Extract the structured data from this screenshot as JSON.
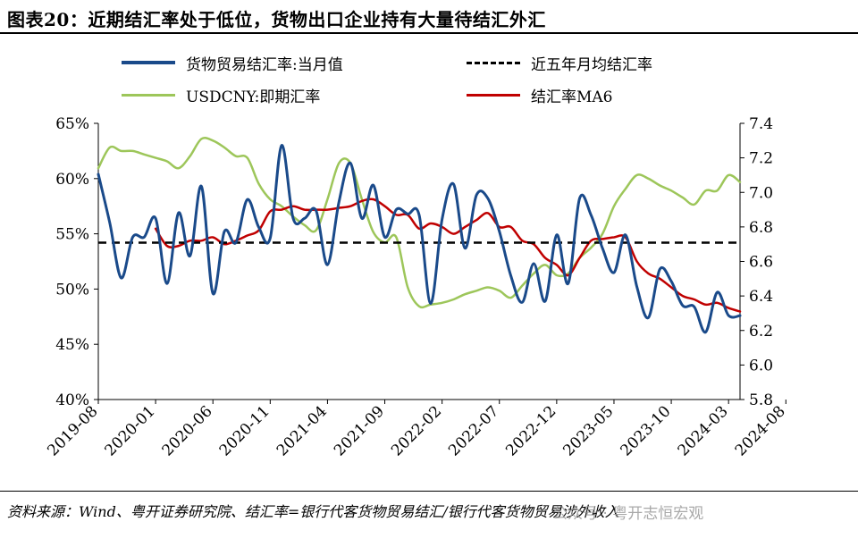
{
  "title": "图表20：近期结汇率处于低位，货物出口企业持有大量待结汇外汇",
  "source": "资料来源：Wind、粤开证券研究院、结汇率=银行代客货物贸易结汇/银行代客货物贸易涉外收入",
  "watermark": "公众号 · 粤开志恒宏观",
  "colors": {
    "blue": "#1a4a8a",
    "green": "#9dc65a",
    "red": "#c00000",
    "black": "#000000"
  },
  "legend": {
    "blue": "货物贸易结汇率:当月值",
    "black": "近五年月均结汇率",
    "green": "USDCNY:即期汇率",
    "red": "结汇率MA6"
  },
  "chart_data": {
    "type": "line",
    "x_labels": [
      "2019-08",
      "2020-01",
      "2020-06",
      "2020-11",
      "2021-04",
      "2021-09",
      "2022-02",
      "2022-07",
      "2022-12",
      "2023-05",
      "2023-10",
      "2024-03",
      "2024-08"
    ],
    "y_left": {
      "min": 40,
      "max": 65,
      "ticks": [
        "40%",
        "45%",
        "50%",
        "55%",
        "60%",
        "65%"
      ]
    },
    "y_right": {
      "min": 5.8,
      "max": 7.4,
      "ticks": [
        "5.8",
        "6.0",
        "6.2",
        "6.4",
        "6.6",
        "6.8",
        "7.0",
        "7.2",
        "7.4"
      ]
    },
    "series": [
      {
        "name": "货物贸易结汇率:当月值",
        "axis": "left",
        "color": "blue",
        "values": [
          60.4,
          56,
          51,
          54.7,
          54.7,
          56.4,
          50.5,
          56.9,
          53,
          59.3,
          49.6,
          55.2,
          54.2,
          58.1,
          55.6,
          54.6,
          63.0,
          56.4,
          56.4,
          57.1,
          52.2,
          57.9,
          61.4,
          56.4,
          59.4,
          54.7,
          57.2,
          56.8,
          56.7,
          48.7,
          56.3,
          59.5,
          53.7,
          58.5,
          58.2,
          55.2,
          51.2,
          48.8,
          52.3,
          48.9,
          54.9,
          50.5,
          58.2,
          56.7,
          53.7,
          51.5,
          54.9,
          50.2,
          47.4,
          51.8,
          50.7,
          48.5,
          48.4,
          46.1,
          49.7,
          47.6,
          47.6
        ]
      },
      {
        "name": "近五年月均结汇率",
        "axis": "left",
        "color": "black",
        "dashed": true,
        "values": [
          54.2,
          54.2
        ]
      },
      {
        "name": "USDCNY:即期汇率",
        "axis": "right",
        "color": "green",
        "values": [
          7.14,
          7.26,
          7.24,
          7.24,
          7.22,
          7.2,
          7.18,
          7.14,
          7.21,
          7.31,
          7.3,
          7.26,
          7.21,
          7.2,
          7.05,
          6.96,
          6.92,
          6.86,
          6.81,
          6.78,
          6.96,
          7.17,
          7.17,
          6.96,
          6.77,
          6.71,
          6.74,
          6.45,
          6.34,
          6.35,
          6.36,
          6.38,
          6.41,
          6.43,
          6.45,
          6.43,
          6.39,
          6.46,
          6.53,
          6.58,
          6.52,
          6.53,
          6.62,
          6.68,
          6.76,
          6.92,
          7.02,
          7.1,
          7.08,
          7.04,
          7.01,
          6.97,
          6.93,
          7.01,
          7.01,
          7.1,
          7.06
        ]
      },
      {
        "name": "结汇率MA6",
        "axis": "right",
        "color": "red",
        "values": [
          null,
          null,
          null,
          null,
          null,
          6.79,
          6.69,
          6.69,
          6.72,
          6.72,
          6.74,
          6.7,
          6.72,
          6.75,
          6.78,
          6.89,
          6.9,
          6.92,
          6.9,
          6.9,
          6.9,
          6.91,
          6.92,
          6.95,
          6.96,
          6.92,
          6.87,
          6.87,
          6.79,
          6.82,
          6.8,
          6.76,
          6.8,
          6.84,
          6.88,
          6.8,
          6.8,
          6.72,
          6.7,
          6.62,
          6.58,
          6.52,
          6.62,
          6.72,
          6.73,
          6.74,
          6.74,
          6.6,
          6.53,
          6.5,
          6.45,
          6.4,
          6.38,
          6.35,
          6.36,
          6.33,
          6.31
        ]
      }
    ]
  }
}
